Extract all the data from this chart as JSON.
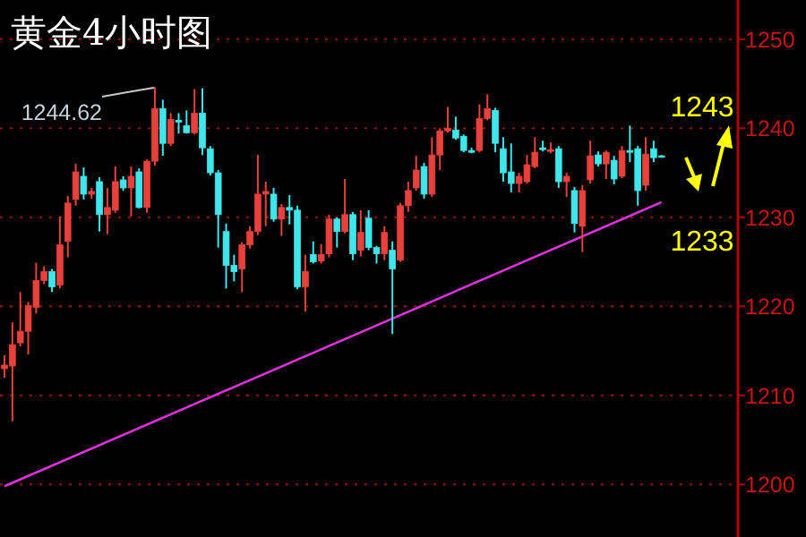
{
  "chart_data": {
    "type": "candlestick",
    "title": "黄金4小时图",
    "categories": [
      null,
      null,
      null,
      null,
      null,
      null,
      null,
      null,
      null,
      null,
      null,
      null,
      null,
      null,
      null,
      null,
      null,
      null,
      null,
      null,
      null,
      null,
      null,
      null,
      null,
      null,
      null,
      null,
      null,
      null,
      null,
      null,
      null,
      null,
      null,
      null,
      null,
      null,
      null,
      null,
      null,
      null,
      null,
      null,
      null,
      null,
      null,
      null,
      null,
      null,
      null,
      null,
      null,
      null,
      null,
      null,
      null,
      null,
      null,
      null,
      null,
      null,
      null,
      null,
      null,
      null,
      null,
      null,
      null,
      null,
      null,
      null,
      null,
      null,
      null,
      null,
      null,
      null,
      null,
      null,
      null,
      null,
      null,
      null
    ],
    "ohlc": [
      [
        1213.0,
        1214.5,
        1212.0,
        1213.4
      ],
      [
        1213.3,
        1218.2,
        1207.1,
        1215.7
      ],
      [
        1215.9,
        1221.6,
        1215.5,
        1217.2
      ],
      [
        1217.2,
        1220.5,
        1214.6,
        1220.1
      ],
      [
        1219.9,
        1224.9,
        1219.2,
        1222.9
      ],
      [
        1222.9,
        1224.5,
        1222.5,
        1223.9
      ],
      [
        1223.9,
        1224.2,
        1221.6,
        1222.2
      ],
      [
        1222.4,
        1230.1,
        1222.0,
        1226.9
      ],
      [
        1227.3,
        1232.4,
        1225.5,
        1231.6
      ],
      [
        1232.0,
        1236.0,
        1231.3,
        1235.1
      ],
      [
        1234.6,
        1235.6,
        1232.0,
        1232.6
      ],
      [
        1232.6,
        1233.3,
        1232.1,
        1232.9
      ],
      [
        1234.0,
        1234.5,
        1228.4,
        1230.3
      ],
      [
        1230.3,
        1233.3,
        1228.1,
        1231.1
      ],
      [
        1230.8,
        1235.7,
        1230.5,
        1234.0
      ],
      [
        1234.2,
        1234.6,
        1233.0,
        1233.3
      ],
      [
        1233.3,
        1235.7,
        1230.1,
        1234.6
      ],
      [
        1235.1,
        1235.5,
        1231.0,
        1231.1
      ],
      [
        1231.1,
        1236.5,
        1230.5,
        1236.3
      ],
      [
        1236.3,
        1244.62,
        1235.8,
        1242.2
      ],
      [
        1242.2,
        1243.2,
        1236.9,
        1238.3
      ],
      [
        1238.3,
        1241.7,
        1238.0,
        1241.0
      ],
      [
        1240.9,
        1241.7,
        1239.4,
        1240.7
      ],
      [
        1240.3,
        1242.0,
        1239.4,
        1239.5
      ],
      [
        1239.5,
        1244.4,
        1239.3,
        1241.7
      ],
      [
        1241.7,
        1244.5,
        1237.0,
        1237.8
      ],
      [
        1237.7,
        1238.0,
        1234.7,
        1235.0
      ],
      [
        1235.0,
        1235.3,
        1226.6,
        1230.3
      ],
      [
        1228.4,
        1229.3,
        1222.0,
        1224.6
      ],
      [
        1224.6,
        1225.8,
        1222.8,
        1223.9
      ],
      [
        1224.2,
        1227.2,
        1221.6,
        1226.9
      ],
      [
        1226.9,
        1229.0,
        1226.5,
        1228.4
      ],
      [
        1228.4,
        1237.0,
        1228.0,
        1232.6
      ],
      [
        1232.6,
        1234.0,
        1229.0,
        1232.9
      ],
      [
        1232.6,
        1233.3,
        1229.5,
        1229.8
      ],
      [
        1229.8,
        1231.5,
        1227.9,
        1231.1
      ],
      [
        1231.1,
        1232.5,
        1229.2,
        1230.8
      ],
      [
        1230.8,
        1231.3,
        1221.9,
        1222.2
      ],
      [
        1222.2,
        1225.8,
        1219.4,
        1223.9
      ],
      [
        1225.8,
        1227.3,
        1224.8,
        1225.0
      ],
      [
        1225.1,
        1227.0,
        1224.8,
        1225.8
      ],
      [
        1225.9,
        1230.3,
        1225.5,
        1229.8
      ],
      [
        1229.8,
        1230.0,
        1226.6,
        1228.4
      ],
      [
        1228.4,
        1234.3,
        1228.2,
        1230.3
      ],
      [
        1230.3,
        1230.6,
        1225.2,
        1225.9
      ],
      [
        1226.3,
        1230.8,
        1225.6,
        1228.3
      ],
      [
        1229.9,
        1230.8,
        1226.3,
        1226.6
      ],
      [
        1226.6,
        1226.8,
        1224.8,
        1225.9
      ],
      [
        1225.9,
        1229.0,
        1225.2,
        1228.3
      ],
      [
        1226.3,
        1227.3,
        1216.9,
        1224.2
      ],
      [
        1225.2,
        1231.6,
        1225.0,
        1231.3
      ],
      [
        1231.3,
        1234.0,
        1230.6,
        1233.0
      ],
      [
        1233.3,
        1236.9,
        1233.0,
        1235.3
      ],
      [
        1235.7,
        1236.1,
        1232.1,
        1232.6
      ],
      [
        1232.6,
        1239.0,
        1232.3,
        1237.0
      ],
      [
        1237.0,
        1240.0,
        1235.3,
        1239.7
      ],
      [
        1239.7,
        1242.4,
        1239.5,
        1240.0
      ],
      [
        1239.8,
        1241.3,
        1238.7,
        1238.9
      ],
      [
        1239.1,
        1239.3,
        1237.3,
        1237.5
      ],
      [
        1237.5,
        1237.8,
        1237.2,
        1237.3
      ],
      [
        1237.5,
        1242.7,
        1237.3,
        1241.1
      ],
      [
        1241.1,
        1243.8,
        1240.9,
        1242.2
      ],
      [
        1242.0,
        1242.3,
        1237.3,
        1238.3
      ],
      [
        1237.7,
        1239.0,
        1234.0,
        1235.0
      ],
      [
        1235.1,
        1238.3,
        1232.8,
        1233.8
      ],
      [
        1233.8,
        1235.0,
        1232.8,
        1234.6
      ],
      [
        1234.0,
        1237.0,
        1233.8,
        1235.9
      ],
      [
        1235.7,
        1239.0,
        1235.5,
        1237.3
      ],
      [
        1237.8,
        1238.6,
        1237.4,
        1237.6
      ],
      [
        1237.4,
        1238.4,
        1237.2,
        1237.6
      ],
      [
        1237.7,
        1238.0,
        1233.3,
        1234.0
      ],
      [
        1234.0,
        1235.0,
        1232.3,
        1234.6
      ],
      [
        1233.0,
        1233.4,
        1228.3,
        1229.3
      ],
      [
        1229.0,
        1233.6,
        1226.1,
        1233.0
      ],
      [
        1234.2,
        1238.6,
        1233.8,
        1236.9
      ],
      [
        1237.0,
        1237.4,
        1235.7,
        1236.0
      ],
      [
        1236.0,
        1237.5,
        1234.3,
        1237.3
      ],
      [
        1236.4,
        1236.9,
        1233.7,
        1234.3
      ],
      [
        1234.6,
        1238.0,
        1234.4,
        1237.5
      ],
      [
        1237.5,
        1240.3,
        1236.2,
        1237.3
      ],
      [
        1237.7,
        1238.0,
        1231.3,
        1233.0
      ],
      [
        1233.6,
        1239.0,
        1233.0,
        1237.1
      ],
      [
        1237.7,
        1238.6,
        1236.2,
        1236.7
      ],
      [
        1236.9,
        1237.0,
        1236.7,
        1236.8
      ]
    ],
    "colors": [
      "#e8413c",
      "#e8413c",
      "#e8413c",
      "#e8413c",
      "#e8413c",
      "#e8413c",
      "#3fe6ec",
      "#e8413c",
      "#e8413c",
      "#e8413c",
      "#3fe6ec",
      "#e8413c",
      "#3fe6ec",
      "#e8413c",
      "#e8413c",
      "#3fe6ec",
      "#e8413c",
      "#3fe6ec",
      "#e8413c",
      "#e8413c",
      "#3fe6ec",
      "#e8413c",
      "#3fe6ec",
      "#3fe6ec",
      "#e8413c",
      "#3fe6ec",
      "#3fe6ec",
      "#3fe6ec",
      "#3fe6ec",
      "#3fe6ec",
      "#e8413c",
      "#e8413c",
      "#e8413c",
      "#e8413c",
      "#3fe6ec",
      "#e8413c",
      "#3fe6ec",
      "#3fe6ec",
      "#e8413c",
      "#3fe6ec",
      "#e8413c",
      "#e8413c",
      "#3fe6ec",
      "#e8413c",
      "#3fe6ec",
      "#e8413c",
      "#3fe6ec",
      "#3fe6ec",
      "#e8413c",
      "#3fe6ec",
      "#e8413c",
      "#e8413c",
      "#e8413c",
      "#3fe6ec",
      "#e8413c",
      "#e8413c",
      "#e8413c",
      "#3fe6ec",
      "#3fe6ec",
      "#3fe6ec",
      "#e8413c",
      "#e8413c",
      "#3fe6ec",
      "#3fe6ec",
      "#3fe6ec",
      "#e8413c",
      "#e8413c",
      "#e8413c",
      "#3fe6ec",
      "#e8413c",
      "#3fe6ec",
      "#e8413c",
      "#3fe6ec",
      "#e8413c",
      "#e8413c",
      "#3fe6ec",
      "#e8413c",
      "#3fe6ec",
      "#e8413c",
      "#3fe6ec",
      "#3fe6ec",
      "#e8413c",
      "#3fe6ec",
      "#3fe6ec"
    ],
    "series": [
      {
        "type": "line",
        "color": "#e030e0",
        "values": [
          1199.8,
          null,
          null,
          null,
          null,
          null,
          null,
          null,
          null,
          null,
          null,
          null,
          null,
          null,
          null,
          null,
          null,
          null,
          null,
          null,
          null,
          null,
          null,
          null,
          null,
          null,
          null,
          null,
          null,
          null,
          null,
          null,
          null,
          null,
          null,
          null,
          null,
          null,
          null,
          null,
          null,
          null,
          null,
          null,
          null,
          null,
          null,
          null,
          null,
          null,
          null,
          null,
          null,
          null,
          null,
          null,
          null,
          null,
          null,
          null,
          null,
          null,
          null,
          null,
          null,
          null,
          null,
          null,
          null,
          null,
          null,
          null,
          null,
          null,
          null,
          null,
          null,
          null,
          null,
          null,
          null,
          null,
          null,
          1231.7
        ]
      }
    ],
    "ylim": [
      1194.1,
      1254.4
    ],
    "yticks": [
      1200,
      1210,
      1220,
      1230,
      1240,
      1250
    ],
    "grid": "y",
    "tick_labels": "y",
    "annotations": [
      "1244.62",
      "1243",
      "1233"
    ]
  }
}
